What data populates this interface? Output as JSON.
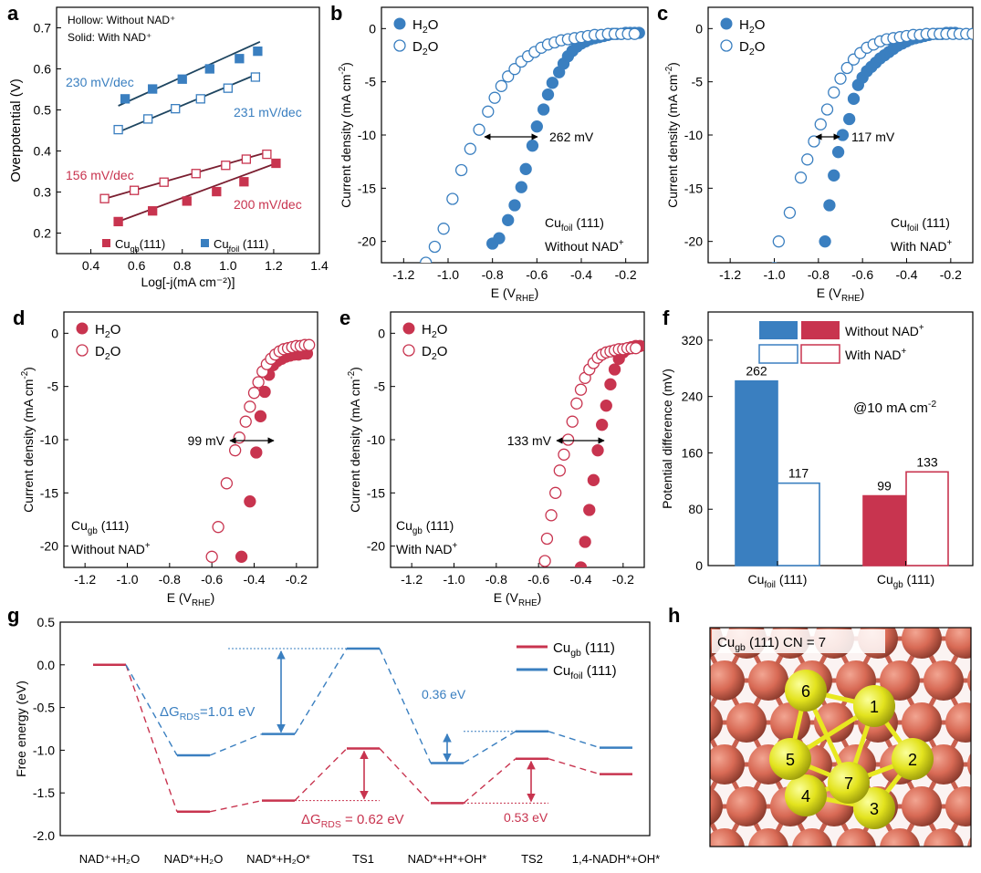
{
  "colors": {
    "blue": "#3a7fc0",
    "red": "#c8344f",
    "blue_fit": "#1e4560",
    "red_fit": "#7a1e30",
    "arrow_blue": "#3a7fc0",
    "arrow_red": "#c8344f"
  },
  "panels": {
    "a": {
      "letter": "a",
      "legend_top": [
        "Hollow: Without NAD⁺",
        "Solid: With  NAD⁺"
      ],
      "xlabel": "Log[-j(mA cm⁻²)]",
      "ylabel": "Overpotential (V)",
      "xticks": [
        0.4,
        0.6,
        0.8,
        1.0,
        1.2,
        1.4
      ],
      "yticks": [
        0.2,
        0.3,
        0.4,
        0.5,
        0.6,
        0.7
      ],
      "slopes": [
        "230 mV/dec",
        "231 mV/dec",
        "156 mV/dec",
        "200 mV/dec"
      ],
      "legend_items": [
        "Cu",
        "gb",
        "(111)",
        "Cu",
        "foil",
        " (111)"
      ]
    },
    "b": {
      "letter": "b",
      "legend": [
        "H",
        "2",
        "O",
        "D",
        "2",
        "O"
      ],
      "xlabel": [
        "E (V",
        "RHE",
        ")"
      ],
      "ylabel": [
        "Current density (mA cm",
        "-2",
        ")"
      ],
      "xticks": [
        "-1.2",
        "-1.0",
        "-0.8",
        "-0.6",
        "-0.4",
        "-0.2"
      ],
      "yticks": [
        "0",
        "-5",
        "-10",
        "-15",
        "-20"
      ],
      "annotation": "262 mV",
      "label1": [
        "Cu",
        "foil",
        " (111)"
      ],
      "label2": [
        "Without NAD",
        "+"
      ]
    },
    "c": {
      "letter": "c",
      "legend": [
        "H",
        "2",
        "O",
        "D",
        "2",
        "O"
      ],
      "xlabel": [
        "E (V",
        "RHE",
        ")"
      ],
      "ylabel": [
        "Current density (mA cm",
        "-2",
        ")"
      ],
      "xticks": [
        "-1.2",
        "-1.0",
        "-0.8",
        "-0.6",
        "-0.4",
        "-0.2"
      ],
      "yticks": [
        "0",
        "-5",
        "-10",
        "-15",
        "-20"
      ],
      "annotation": "117 mV",
      "label1": [
        "Cu",
        "foil",
        " (111)"
      ],
      "label2": [
        "With NAD",
        "+"
      ]
    },
    "d": {
      "letter": "d",
      "legend": [
        "H",
        "2",
        "O",
        "D",
        "2",
        "O"
      ],
      "xlabel": [
        "E (V",
        "RHE",
        ")"
      ],
      "ylabel": [
        "Current density (mA cm",
        "-2",
        ")"
      ],
      "xticks": [
        "-1.2",
        "-1.0",
        "-0.8",
        "-0.6",
        "-0.4",
        "-0.2"
      ],
      "yticks": [
        "0",
        "-5",
        "-10",
        "-15",
        "-20"
      ],
      "annotation": "99 mV",
      "label1": [
        "Cu",
        "gb",
        " (111)"
      ],
      "label2": [
        "Without NAD",
        "+"
      ]
    },
    "e": {
      "letter": "e",
      "legend": [
        "H",
        "2",
        "O",
        "D",
        "2",
        "O"
      ],
      "xlabel": [
        "E (V",
        "RHE",
        ")"
      ],
      "ylabel": [
        "Current density (mA cm",
        "-2",
        ")"
      ],
      "xticks": [
        "-1.2",
        "-1.0",
        "-0.8",
        "-0.6",
        "-0.4",
        "-0.2"
      ],
      "yticks": [
        "0",
        "-5",
        "-10",
        "-15",
        "-20"
      ],
      "annotation": "133 mV",
      "label1": [
        "Cu",
        "gb",
        " (111)"
      ],
      "label2": [
        "With NAD",
        "+"
      ]
    },
    "f": {
      "letter": "f",
      "ylabel": "Potential difference  (mV)",
      "yticks": [
        "0",
        "80",
        "160",
        "240",
        "320"
      ],
      "legend": [
        "Without NAD",
        "+",
        "With NAD",
        "+"
      ],
      "annotation": [
        "@10 mA cm",
        "-2"
      ],
      "categories": [
        [
          "Cu",
          "foil",
          " (111)"
        ],
        [
          "Cu",
          "gb",
          " (111)"
        ]
      ]
    },
    "g": {
      "letter": "g",
      "ylabel": "Free energy (eV)",
      "yticks": [
        "0.5",
        "0.0",
        "-0.5",
        "-1.0",
        "-1.5",
        "-2.0"
      ],
      "xlabels": [
        "NAD⁺+H₂O",
        "NAD*+H₂O",
        "NAD*+H₂O*",
        "TS1",
        "NAD*+H*+OH*",
        "TS2",
        "1,4-NADH*+OH*"
      ],
      "legend": [
        [
          "Cu",
          "gb",
          " (111)"
        ],
        [
          "Cu",
          "foil",
          " (111)"
        ]
      ],
      "annotations": {
        "blue_rds": [
          "ΔG",
          "RDS",
          "=1.01 eV"
        ],
        "blue_2": "0.36 eV",
        "red_rds": [
          "ΔG",
          "RDS",
          " = 0.62 eV"
        ],
        "red_2": "0.53 eV"
      }
    },
    "h": {
      "letter": "h",
      "title": [
        "Cu",
        "gb",
        " (111)  CN = 7"
      ],
      "atoms": [
        "1",
        "2",
        "3",
        "4",
        "5",
        "6",
        "7"
      ]
    }
  },
  "chart_data": [
    {
      "panel": "a",
      "type": "scatter",
      "xlabel": "Log[-j(mA cm⁻²)]",
      "ylabel": "Overpotential (V)",
      "xlim": [
        0.25,
        1.4
      ],
      "ylim": [
        0.15,
        0.75
      ],
      "series": [
        {
          "name": "Cu_foil(111) With NAD+",
          "marker": "filled-square",
          "color": "#3a7fc0",
          "x": [
            0.55,
            0.67,
            0.8,
            0.92,
            1.05,
            1.13
          ],
          "y": [
            0.527,
            0.551,
            0.575,
            0.6,
            0.625,
            0.643
          ],
          "fit": {
            "x": [
              0.52,
              1.14
            ],
            "y": [
              0.51,
              0.666
            ]
          }
        },
        {
          "name": "Cu_foil(111) Without NAD+",
          "marker": "hollow-square",
          "color": "#3a7fc0",
          "x": [
            0.52,
            0.65,
            0.77,
            0.88,
            1.0,
            1.12
          ],
          "y": [
            0.452,
            0.478,
            0.503,
            0.527,
            0.553,
            0.58
          ],
          "fit": {
            "x": [
              0.52,
              1.14
            ],
            "y": [
              0.446,
              0.59
            ]
          }
        },
        {
          "name": "Cu_gb(111) Without NAD+",
          "marker": "hollow-square",
          "color": "#c8344f",
          "x": [
            0.46,
            0.59,
            0.72,
            0.86,
            0.99,
            1.08,
            1.17
          ],
          "y": [
            0.284,
            0.304,
            0.324,
            0.345,
            0.365,
            0.38,
            0.392
          ],
          "fit": {
            "x": [
              0.45,
              1.18
            ],
            "y": [
              0.282,
              0.398
            ]
          }
        },
        {
          "name": "Cu_gb(111) With NAD+",
          "marker": "filled-square",
          "color": "#c8344f",
          "x": [
            0.52,
            0.67,
            0.82,
            0.95,
            1.07,
            1.21
          ],
          "y": [
            0.228,
            0.254,
            0.278,
            0.301,
            0.325,
            0.37
          ],
          "fit": {
            "x": [
              0.52,
              1.22
            ],
            "y": [
              0.228,
              0.372
            ]
          }
        }
      ],
      "annotations": [
        "230 mV/dec",
        "231 mV/dec",
        "156 mV/dec",
        "200 mV/dec"
      ]
    },
    {
      "panel": "b",
      "type": "scatter",
      "xlabel": "E (V RHE)",
      "ylabel": "Current density (mA cm-2)",
      "xlim": [
        -1.3,
        -0.1
      ],
      "ylim": [
        -22,
        2
      ],
      "series": [
        {
          "name": "H2O",
          "marker": "filled-circle",
          "color": "#3a7fc0",
          "x": [
            -0.8,
            -0.77,
            -0.73,
            -0.7,
            -0.67,
            -0.65,
            -0.62,
            -0.6,
            -0.57,
            -0.55,
            -0.53,
            -0.5,
            -0.48,
            -0.46,
            -0.44,
            -0.42,
            -0.4,
            -0.38,
            -0.36,
            -0.34,
            -0.32,
            -0.3,
            -0.28,
            -0.26,
            -0.24,
            -0.22,
            -0.2,
            -0.18,
            -0.16,
            -0.14
          ],
          "y": [
            -20.2,
            -19.7,
            -18.0,
            -16.6,
            -14.9,
            -13.2,
            -11.0,
            -9.2,
            -7.6,
            -6.2,
            -5.1,
            -4.1,
            -3.3,
            -2.6,
            -2.1,
            -1.7,
            -1.4,
            -1.2,
            -1.0,
            -0.9,
            -0.8,
            -0.7,
            -0.6,
            -0.5,
            -0.5,
            -0.5,
            -0.4,
            -0.4,
            -0.4,
            -0.4
          ]
        },
        {
          "name": "D2O",
          "marker": "hollow-circle",
          "color": "#3a7fc0",
          "x": [
            -1.1,
            -1.06,
            -1.02,
            -0.98,
            -0.94,
            -0.9,
            -0.86,
            -0.82,
            -0.79,
            -0.76,
            -0.73,
            -0.7,
            -0.67,
            -0.64,
            -0.61,
            -0.58,
            -0.55,
            -0.52,
            -0.49,
            -0.46,
            -0.43,
            -0.4,
            -0.37,
            -0.34,
            -0.31,
            -0.28,
            -0.25,
            -0.22,
            -0.19,
            -0.16
          ],
          "y": [
            -22.0,
            -20.5,
            -18.8,
            -16.0,
            -13.3,
            -11.3,
            -9.5,
            -7.8,
            -6.5,
            -5.4,
            -4.5,
            -3.8,
            -3.1,
            -2.6,
            -2.2,
            -1.8,
            -1.5,
            -1.3,
            -1.1,
            -1.0,
            -0.9,
            -0.8,
            -0.7,
            -0.6,
            -0.6,
            -0.5,
            -0.5,
            -0.5,
            -0.5,
            -0.5
          ]
        }
      ],
      "annotation": "262 mV"
    },
    {
      "panel": "c",
      "type": "scatter",
      "xlabel": "E (V RHE)",
      "ylabel": "Current density (mA cm-2)",
      "xlim": [
        -1.3,
        -0.1
      ],
      "ylim": [
        -22,
        2
      ],
      "series": [
        {
          "name": "H2O",
          "marker": "filled-circle",
          "color": "#3a7fc0",
          "x": [
            -0.77,
            -0.75,
            -0.73,
            -0.71,
            -0.69,
            -0.66,
            -0.64,
            -0.62,
            -0.6,
            -0.58,
            -0.56,
            -0.54,
            -0.52,
            -0.5,
            -0.48,
            -0.46,
            -0.44,
            -0.42,
            -0.4,
            -0.38,
            -0.36,
            -0.34,
            -0.32,
            -0.3,
            -0.28,
            -0.26,
            -0.24,
            -0.22,
            -0.2,
            -0.18
          ],
          "y": [
            -20.0,
            -16.6,
            -13.8,
            -11.6,
            -10.0,
            -8.5,
            -6.6,
            -5.3,
            -4.6,
            -4.0,
            -3.6,
            -3.2,
            -2.8,
            -2.5,
            -2.2,
            -1.9,
            -1.6,
            -1.4,
            -1.2,
            -1.0,
            -0.9,
            -0.8,
            -0.7,
            -0.6,
            -0.5,
            -0.5,
            -0.5,
            -0.4,
            -0.4,
            -0.4
          ]
        },
        {
          "name": "D2O",
          "marker": "hollow-circle",
          "color": "#3a7fc0",
          "x": [
            -1.0,
            -0.98,
            -0.93,
            -0.88,
            -0.85,
            -0.82,
            -0.79,
            -0.76,
            -0.73,
            -0.7,
            -0.67,
            -0.64,
            -0.61,
            -0.58,
            -0.55,
            -0.52,
            -0.49,
            -0.46,
            -0.43,
            -0.4,
            -0.37,
            -0.34,
            -0.31,
            -0.28,
            -0.25,
            -0.22,
            -0.19,
            -0.16,
            -0.13,
            -0.1
          ],
          "y": [
            -22.5,
            -20.0,
            -17.3,
            -14.0,
            -12.3,
            -10.6,
            -9.0,
            -7.6,
            -6.0,
            -4.7,
            -3.7,
            -2.9,
            -2.3,
            -1.8,
            -1.5,
            -1.2,
            -1.0,
            -0.9,
            -0.8,
            -0.7,
            -0.6,
            -0.6,
            -0.5,
            -0.5,
            -0.5,
            -0.5,
            -0.5,
            -0.5,
            -0.5,
            -0.5
          ]
        }
      ],
      "annotation": "117 mV"
    },
    {
      "panel": "d",
      "type": "scatter",
      "xlabel": "E (V RHE)",
      "ylabel": "Current density (mA cm-2)",
      "xlim": [
        -1.3,
        -0.1
      ],
      "ylim": [
        -22,
        2
      ],
      "series": [
        {
          "name": "H2O",
          "marker": "filled-circle",
          "color": "#c8344f",
          "x": [
            -0.46,
            -0.42,
            -0.39,
            -0.37,
            -0.35,
            -0.33,
            -0.31,
            -0.29,
            -0.27,
            -0.25,
            -0.23,
            -0.21,
            -0.19,
            -0.17,
            -0.15
          ],
          "y": [
            -21.0,
            -15.8,
            -11.2,
            -7.8,
            -5.5,
            -3.9,
            -3.0,
            -2.6,
            -2.4,
            -2.2,
            -2.1,
            -2.0,
            -2.0,
            -1.9,
            -1.9
          ]
        },
        {
          "name": "D2O",
          "marker": "hollow-circle",
          "color": "#c8344f",
          "x": [
            -0.6,
            -0.57,
            -0.53,
            -0.49,
            -0.47,
            -0.44,
            -0.42,
            -0.4,
            -0.38,
            -0.36,
            -0.34,
            -0.32,
            -0.3,
            -0.28,
            -0.26,
            -0.24,
            -0.22,
            -0.2,
            -0.18,
            -0.16,
            -0.14
          ],
          "y": [
            -21.0,
            -18.2,
            -14.1,
            -11.0,
            -9.8,
            -8.3,
            -6.9,
            -5.6,
            -4.6,
            -3.6,
            -2.9,
            -2.4,
            -2.0,
            -1.7,
            -1.5,
            -1.4,
            -1.3,
            -1.2,
            -1.2,
            -1.1,
            -1.1
          ]
        }
      ],
      "annotation": "99 mV"
    },
    {
      "panel": "e",
      "type": "scatter",
      "xlabel": "E (V RHE)",
      "ylabel": "Current density (mA cm-2)",
      "xlim": [
        -1.3,
        -0.1
      ],
      "ylim": [
        -22,
        2
      ],
      "series": [
        {
          "name": "H2O",
          "marker": "filled-circle",
          "color": "#c8344f",
          "x": [
            -0.4,
            -0.38,
            -0.36,
            -0.34,
            -0.32,
            -0.3,
            -0.28,
            -0.26,
            -0.24,
            -0.22,
            -0.2,
            -0.18,
            -0.16,
            -0.14,
            -0.12
          ],
          "y": [
            -22.0,
            -19.6,
            -16.6,
            -13.8,
            -11.0,
            -8.6,
            -6.8,
            -4.8,
            -3.4,
            -2.4,
            -1.8,
            -1.5,
            -1.3,
            -1.2,
            -1.2
          ]
        },
        {
          "name": "D2O",
          "marker": "hollow-circle",
          "color": "#c8344f",
          "x": [
            -0.57,
            -0.56,
            -0.54,
            -0.52,
            -0.5,
            -0.48,
            -0.46,
            -0.44,
            -0.42,
            -0.4,
            -0.38,
            -0.36,
            -0.34,
            -0.32,
            -0.3,
            -0.28,
            -0.26,
            -0.24,
            -0.22,
            -0.2,
            -0.18,
            -0.16,
            -0.14
          ],
          "y": [
            -21.4,
            -19.3,
            -17.1,
            -15.0,
            -12.9,
            -11.4,
            -10.0,
            -8.3,
            -6.6,
            -5.3,
            -4.2,
            -3.4,
            -2.8,
            -2.3,
            -2.0,
            -1.8,
            -1.7,
            -1.6,
            -1.5,
            -1.5,
            -1.4,
            -1.4,
            -1.4
          ]
        }
      ],
      "annotation": "133 mV"
    },
    {
      "panel": "f",
      "type": "bar",
      "ylabel": "Potential difference  (mV)",
      "ylim": [
        0,
        360
      ],
      "categories": [
        "Cu_foil (111)",
        "Cu_gb (111)"
      ],
      "series": [
        {
          "name": "Without NAD+",
          "style": "filled",
          "values": [
            262,
            99
          ],
          "colors": [
            "#3a7fc0",
            "#c8344f"
          ]
        },
        {
          "name": "With NAD+",
          "style": "hollow",
          "values": [
            117,
            133
          ],
          "colors": [
            "#3a7fc0",
            "#c8344f"
          ]
        }
      ],
      "data_labels": [
        "262",
        "117",
        "99",
        "133"
      ],
      "annotation": "@10 mA cm-2"
    },
    {
      "panel": "g",
      "type": "line",
      "ylabel": "Free energy (eV)",
      "ylim": [
        -2.0,
        0.5
      ],
      "categories": [
        "NAD⁺+H₂O",
        "NAD*+H₂O",
        "NAD*+H₂O*",
        "TS1",
        "NAD*+H*+OH*",
        "TS2",
        "1,4-NADH*+OH*"
      ],
      "series": [
        {
          "name": "Cu_gb (111)",
          "color": "#c8344f",
          "values": [
            0.0,
            -1.72,
            -1.59,
            -0.98,
            -1.62,
            -1.1,
            -1.28
          ]
        },
        {
          "name": "Cu_foil (111)",
          "color": "#3a7fc0",
          "values": [
            0.0,
            -1.06,
            -0.81,
            0.19,
            -1.15,
            -0.78,
            -0.97
          ]
        }
      ],
      "annotations": [
        "ΔG_RDS=1.01 eV",
        "0.36 eV",
        "ΔG_RDS = 0.62 eV",
        "0.53 eV"
      ]
    }
  ]
}
